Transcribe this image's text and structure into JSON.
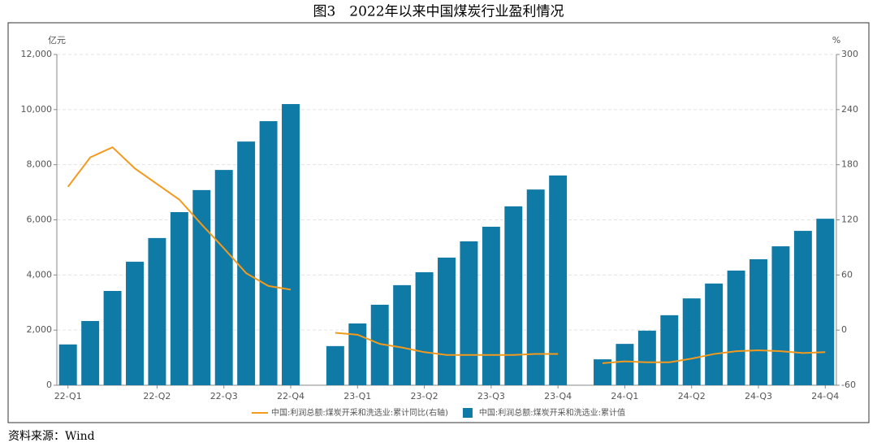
{
  "chart_data": {
    "type": "bar",
    "title": "图3　2022年以来中国煤炭行业盈利情况",
    "source": "资料来源：Wind",
    "y_label": "亿元",
    "y2_label": "%",
    "categories": [
      "22-Q1",
      null,
      null,
      null,
      "22-Q2",
      null,
      null,
      "22-Q3",
      null,
      null,
      "22-Q4",
      null,
      null,
      "23-Q1",
      null,
      null,
      "23-Q2",
      null,
      null,
      "23-Q3",
      null,
      null,
      "23-Q4",
      null,
      null,
      "24-Q1",
      null,
      null,
      "24-Q2",
      null,
      null,
      "24-Q3",
      null,
      null,
      "24-Q4"
    ],
    "ylim": [
      0,
      12000
    ],
    "yticks": [
      0,
      {
        "value": 2000,
        "label": "2,000"
      },
      {
        "value": 4000,
        "label": "4,000"
      },
      {
        "value": 6000,
        "label": "6,000"
      },
      {
        "value": 8000,
        "label": "8,000"
      },
      {
        "value": 10000,
        "label": "10,000"
      },
      {
        "value": 12000,
        "label": "12,000"
      }
    ],
    "y2lim": [
      -60,
      300
    ],
    "y2ticks": [
      -60,
      0,
      60,
      120,
      180,
      240,
      300
    ],
    "grid": true,
    "legend": "bottom",
    "series": [
      {
        "name": "中国:利润总额:煤炭开采和洗选业:累计同比(右轴)",
        "type": "line",
        "axis": "y2",
        "color": "#f39a1e",
        "values": [
          156,
          188,
          199,
          176,
          159,
          142,
          115,
          89,
          62,
          48,
          44,
          null,
          -3,
          -5,
          -15,
          -19,
          -24,
          -27,
          -27,
          -27,
          -27,
          -26,
          -26,
          null,
          -36,
          -34,
          -35,
          -35,
          -31,
          -26,
          -23,
          -22,
          -23,
          -25,
          -24
        ]
      },
      {
        "name": "中国:利润总额:煤炭开采和洗选业:累计值",
        "type": "bar",
        "color": "#0e7aa5",
        "values": [
          1480,
          2330,
          3420,
          4480,
          5340,
          6280,
          7080,
          7810,
          8840,
          9580,
          10200,
          null,
          1420,
          2240,
          2920,
          3630,
          4100,
          4630,
          5220,
          5750,
          6490,
          7100,
          7610,
          null,
          940,
          1500,
          1980,
          2540,
          3150,
          3690,
          4160,
          4570,
          5040,
          5600,
          6040
        ]
      }
    ]
  }
}
